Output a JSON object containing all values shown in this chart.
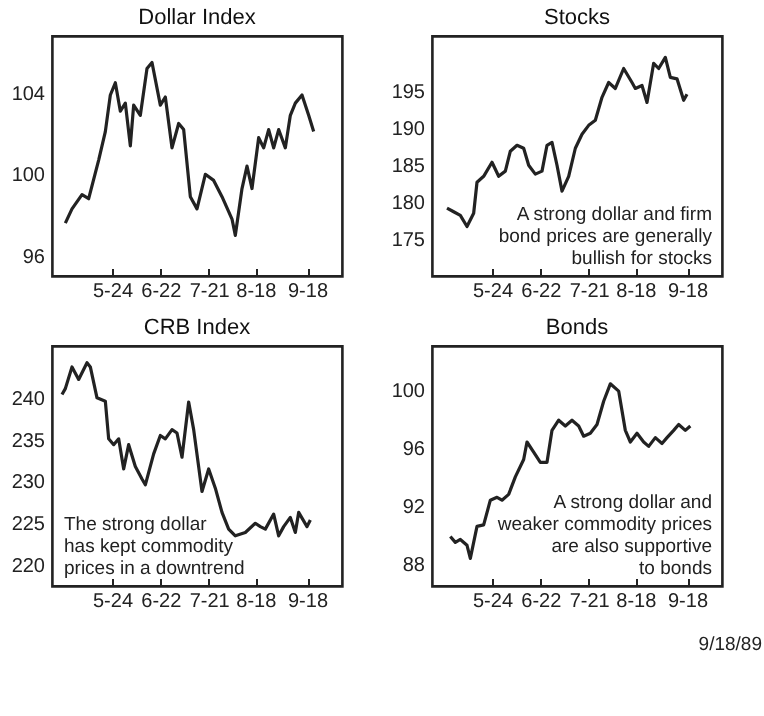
{
  "chart_data": [
    {
      "type": "line",
      "title": "Dollar Index",
      "color": "#222222",
      "xlim": [
        "--04-18",
        "--10-09"
      ],
      "xticks": [
        {
          "value": "--05-24",
          "label": "5-24"
        },
        {
          "value": "--06-22",
          "label": "6-22"
        },
        {
          "value": "--07-21",
          "label": "7-21"
        },
        {
          "value": "--08-18",
          "label": "8-18"
        },
        {
          "value": "--09-18",
          "label": "9-18"
        }
      ],
      "ylim": [
        95,
        106.8
      ],
      "yticks": [
        96,
        100,
        104
      ],
      "x": [
        "--04-26",
        "--04-30",
        "--05-06",
        "--05-10",
        "--05-16",
        "--05-20",
        "--05-23",
        "--05-26",
        "--05-29",
        "--06-01",
        "--06-04",
        "--06-06",
        "--06-10",
        "--06-14",
        "--06-17",
        "--06-22",
        "--06-25",
        "--06-29",
        "--07-03",
        "--07-06",
        "--07-10",
        "--07-14",
        "--07-19",
        "--07-24",
        "--07-29",
        "--08-04",
        "--08-06",
        "--08-10",
        "--08-13",
        "--08-16",
        "--08-20",
        "--08-23",
        "--08-26",
        "--08-29",
        "--09-01",
        "--09-05",
        "--09-08",
        "--09-11",
        "--09-15",
        "--09-19",
        "--09-22"
      ],
      "values": [
        97.6,
        98.3,
        99.0,
        98.8,
        100.7,
        102.1,
        103.9,
        104.5,
        103.1,
        103.5,
        101.4,
        103.4,
        102.9,
        105.2,
        105.5,
        103.4,
        103.8,
        101.3,
        102.5,
        102.2,
        98.9,
        98.3,
        100.0,
        99.7,
        98.9,
        97.8,
        97.0,
        99.3,
        100.4,
        99.3,
        101.8,
        101.3,
        102.2,
        101.3,
        102.2,
        101.3,
        102.9,
        103.5,
        103.9,
        102.9,
        102.1
      ]
    },
    {
      "type": "line",
      "title": "Stocks",
      "color": "#222222",
      "xlim": [
        "--04-18",
        "--10-09"
      ],
      "xticks": [
        {
          "value": "--05-24",
          "label": "5-24"
        },
        {
          "value": "--06-22",
          "label": "6-22"
        },
        {
          "value": "--07-21",
          "label": "7-21"
        },
        {
          "value": "--08-18",
          "label": "8-18"
        },
        {
          "value": "--09-18",
          "label": "9-18"
        }
      ],
      "ylim": [
        170,
        202.5
      ],
      "yticks": [
        175,
        180,
        185,
        190,
        195
      ],
      "annotations": [
        "A strong dollar and firm\nbond prices are generally\nbullish for stocks"
      ],
      "x": [
        "--04-27",
        "--05-01",
        "--05-05",
        "--05-09",
        "--05-13",
        "--05-15",
        "--05-19",
        "--05-24",
        "--05-28",
        "--06-01",
        "--06-04",
        "--06-08",
        "--06-12",
        "--06-15",
        "--06-19",
        "--06-23",
        "--06-26",
        "--06-29",
        "--07-02",
        "--07-05",
        "--07-09",
        "--07-13",
        "--07-17",
        "--07-21",
        "--07-25",
        "--07-29",
        "--08-02",
        "--08-06",
        "--08-11",
        "--08-16",
        "--08-18",
        "--08-22",
        "--08-25",
        "--08-29",
        "--09-01",
        "--09-05",
        "--09-08",
        "--09-12",
        "--09-16",
        "--09-18"
      ],
      "values": [
        179.2,
        178.7,
        178.2,
        176.7,
        178.5,
        182.7,
        183.5,
        185.4,
        183.5,
        184.2,
        186.9,
        187.7,
        187.3,
        185.0,
        183.8,
        184.2,
        187.7,
        188.1,
        185.0,
        181.5,
        183.5,
        187.3,
        189.2,
        190.4,
        191.1,
        194.2,
        196.2,
        195.4,
        198.1,
        196.2,
        195.4,
        195.8,
        193.5,
        198.8,
        198.1,
        199.6,
        196.9,
        196.7,
        193.8,
        194.6
      ]
    },
    {
      "type": "line",
      "title": "CRB Index",
      "color": "#222222",
      "xlim": [
        "--04-18",
        "--10-09"
      ],
      "xticks": [
        {
          "value": "--05-24",
          "label": "5-24"
        },
        {
          "value": "--06-22",
          "label": "6-22"
        },
        {
          "value": "--07-21",
          "label": "7-21"
        },
        {
          "value": "--08-18",
          "label": "8-18"
        },
        {
          "value": "--09-18",
          "label": "9-18"
        }
      ],
      "ylim": [
        217.5,
        246.2
      ],
      "yticks": [
        220,
        225,
        230,
        235,
        240
      ],
      "annotations": [
        "The strong dollar\nhas kept commodity\nprices in a downtrend"
      ],
      "x": [
        "--04-24",
        "--04-26",
        "--04-30",
        "--05-04",
        "--05-09",
        "--05-11",
        "--05-15",
        "--05-20",
        "--05-22",
        "--05-25",
        "--05-28",
        "--05-31",
        "--06-03",
        "--06-07",
        "--06-11",
        "--06-13",
        "--06-18",
        "--06-22",
        "--06-25",
        "--06-29",
        "--07-02",
        "--07-05",
        "--07-09",
        "--07-12",
        "--07-17",
        "--07-21",
        "--07-25",
        "--07-29",
        "--08-02",
        "--08-06",
        "--08-12",
        "--08-18",
        "--08-21",
        "--08-24",
        "--08-29",
        "--09-01",
        "--09-04",
        "--09-08",
        "--09-11",
        "--09-13",
        "--09-18",
        "--09-20"
      ],
      "values": [
        240.4,
        241.1,
        243.7,
        242.2,
        244.2,
        243.7,
        240.0,
        239.6,
        235.1,
        234.4,
        235.1,
        231.5,
        234.4,
        231.8,
        230.3,
        229.6,
        233.3,
        235.5,
        235.1,
        236.2,
        235.8,
        232.9,
        239.5,
        236.2,
        228.8,
        231.5,
        229.2,
        226.3,
        224.3,
        223.5,
        223.9,
        225.0,
        224.6,
        224.3,
        226.1,
        223.5,
        224.6,
        225.7,
        223.9,
        226.3,
        224.6,
        225.4
      ]
    },
    {
      "type": "line",
      "title": "Bonds",
      "color": "#222222",
      "xlim": [
        "--04-18",
        "--10-09"
      ],
      "xticks": [
        {
          "value": "--05-24",
          "label": "5-24"
        },
        {
          "value": "--06-22",
          "label": "6-22"
        },
        {
          "value": "--07-21",
          "label": "7-21"
        },
        {
          "value": "--08-18",
          "label": "8-18"
        },
        {
          "value": "--09-18",
          "label": "9-18"
        }
      ],
      "ylim": [
        86.5,
        103
      ],
      "yticks": [
        88,
        92,
        96,
        100
      ],
      "annotations": [
        "A strong dollar and\nweaker commodity prices\nare also supportive\nto bonds",
        "9/18/89"
      ],
      "x": [
        "--04-29",
        "--05-02",
        "--05-05",
        "--05-09",
        "--05-11",
        "--05-15",
        "--05-19",
        "--05-23",
        "--05-27",
        "--05-30",
        "--06-03",
        "--06-07",
        "--06-12",
        "--06-14",
        "--06-18",
        "--06-22",
        "--06-26",
        "--06-29",
        "--07-03",
        "--07-07",
        "--07-11",
        "--07-15",
        "--07-18",
        "--07-22",
        "--07-26",
        "--07-30",
        "--08-03",
        "--08-08",
        "--08-12",
        "--08-15",
        "--08-19",
        "--08-23",
        "--08-26",
        "--08-30",
        "--09-03",
        "--09-06",
        "--09-10",
        "--09-13",
        "--09-17",
        "--09-20"
      ],
      "values": [
        89.9,
        89.5,
        89.7,
        89.3,
        88.4,
        90.6,
        90.7,
        92.4,
        92.6,
        92.4,
        92.8,
        94.0,
        95.2,
        96.4,
        95.7,
        95.0,
        95.0,
        97.2,
        97.9,
        97.5,
        97.9,
        97.5,
        96.8,
        97.0,
        97.6,
        99.2,
        100.4,
        99.9,
        97.2,
        96.4,
        97.0,
        96.4,
        96.1,
        96.7,
        96.3,
        96.7,
        97.2,
        97.6,
        97.2,
        97.5
      ]
    }
  ]
}
